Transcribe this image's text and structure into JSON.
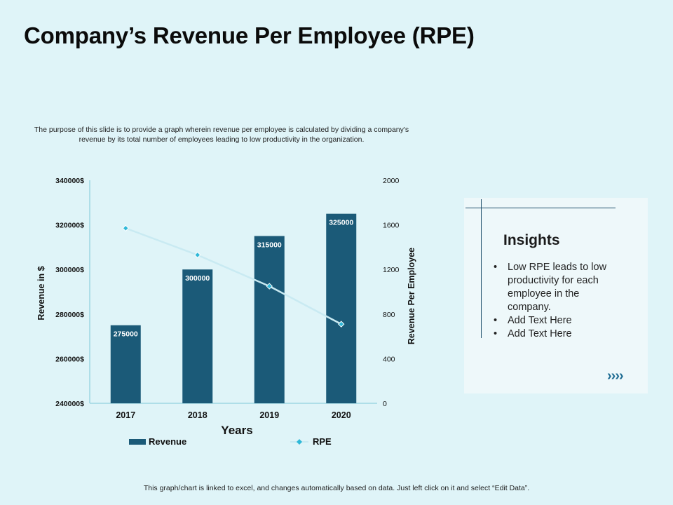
{
  "title": "Company’s Revenue Per Employee (RPE)",
  "purpose_text": "The purpose of this slide is to provide a graph wherein revenue per employee is calculated by dividing a company's revenue by its total number of employees leading to low productivity in the organization.",
  "footer_note": "This graph/chart is linked to excel, and changes automatically based on data. Just left click on it and select “Edit Data”.",
  "insights": {
    "title": "Insights",
    "items": [
      "Low RPE leads to low productivity for each employee in the company.",
      "Add Text Here",
      "Add Text Here"
    ],
    "chevron_icon": "››››"
  },
  "colors": {
    "bar": "#1b5a78",
    "rpe_line": "#c9eaf2",
    "rpe_marker": "#2fb8d8",
    "axis": "#7ec8d8"
  },
  "chart_data": {
    "type": "bar",
    "categories": [
      "2017",
      "2018",
      "2019",
      "2020"
    ],
    "series": [
      {
        "name": "Revenue",
        "type": "bar",
        "axis": "left",
        "values": [
          275000,
          300000,
          315000,
          325000
        ],
        "labels": [
          "275000",
          "300000",
          "315000",
          "325000"
        ]
      },
      {
        "name": "RPE",
        "type": "line",
        "axis": "right",
        "values": [
          1570,
          1330,
          1050,
          710
        ]
      }
    ],
    "xlabel": "Years",
    "ylabel": "Revenue in $",
    "y2label": "Revenue Per Employee",
    "ylim": [
      240000,
      340000
    ],
    "y2lim": [
      0,
      2000
    ],
    "yticks": [
      "240000$",
      "260000$",
      "280000$",
      "300000$",
      "320000$",
      "340000$"
    ],
    "y2ticks": [
      "0",
      "400",
      "800",
      "1200",
      "1600",
      "2000"
    ],
    "legend": [
      "Revenue",
      "RPE"
    ],
    "legend_position": "bottom"
  }
}
